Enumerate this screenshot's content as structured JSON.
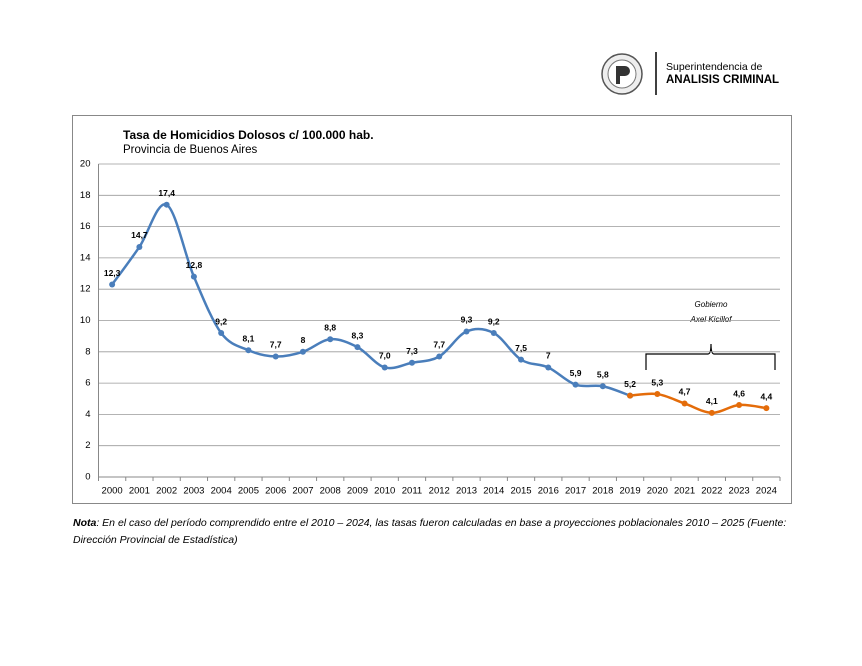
{
  "header": {
    "org_line1": "Superintendencia de",
    "org_line2": "ANALISIS CRIMINAL"
  },
  "chart_data": {
    "type": "line",
    "title": "Tasa de Homicidios Dolosos c/ 100.000 hab.",
    "subtitle": "Provincia de Buenos Aires",
    "categories": [
      "2000",
      "2001",
      "2002",
      "2003",
      "2004",
      "2005",
      "2006",
      "2007",
      "2008",
      "2009",
      "2010",
      "2011",
      "2012",
      "2013",
      "2014",
      "2015",
      "2016",
      "2017",
      "2018",
      "2019",
      "2020",
      "2021",
      "2022",
      "2023",
      "2024"
    ],
    "series": [
      {
        "color": "#4a7ebb",
        "values": [
          12.3,
          14.7,
          17.4,
          12.8,
          9.2,
          8.1,
          7.7,
          8,
          8.8,
          8.3,
          7.0,
          7.3,
          7.7,
          9.3,
          9.2,
          7.5,
          7,
          5.9,
          5.8,
          5.2,
          null,
          null,
          null,
          null,
          null
        ],
        "value_labels": [
          "12,3",
          "14,7",
          "17,4",
          "12,8",
          "9,2",
          "8,1",
          "7,7",
          "8",
          "8,8",
          "8,3",
          "7,0",
          "7,3",
          "7,7",
          "9,3",
          "9,2",
          "7,5",
          "7",
          "5,9",
          "5,8",
          "5,2",
          null,
          null,
          null,
          null,
          null
        ]
      },
      {
        "color": "#e46c0a",
        "values": [
          null,
          null,
          null,
          null,
          null,
          null,
          null,
          null,
          null,
          null,
          null,
          null,
          null,
          null,
          null,
          null,
          null,
          null,
          null,
          5.2,
          5.3,
          4.7,
          4.1,
          4.6,
          4.4
        ],
        "value_labels": [
          null,
          null,
          null,
          null,
          null,
          null,
          null,
          null,
          null,
          null,
          null,
          null,
          null,
          null,
          null,
          null,
          null,
          null,
          null,
          null,
          "5,3",
          "4,7",
          "4,1",
          "4,6",
          "4,4"
        ]
      }
    ],
    "ylim": [
      0,
      20
    ],
    "yticks": [
      0,
      2,
      4,
      6,
      8,
      10,
      12,
      14,
      16,
      18,
      20
    ],
    "grid": true,
    "annotation": {
      "line1": "Gobierno",
      "line2": "Axel Kicillof"
    }
  },
  "note": {
    "label": "Nota",
    "text": ": En el caso del período comprendido entre el 2010 – 2024, las tasas fueron calculadas en base a proyecciones poblacionales 2010 – 2025 (Fuente:",
    "text2": "Dirección Provincial de Estadística)"
  }
}
